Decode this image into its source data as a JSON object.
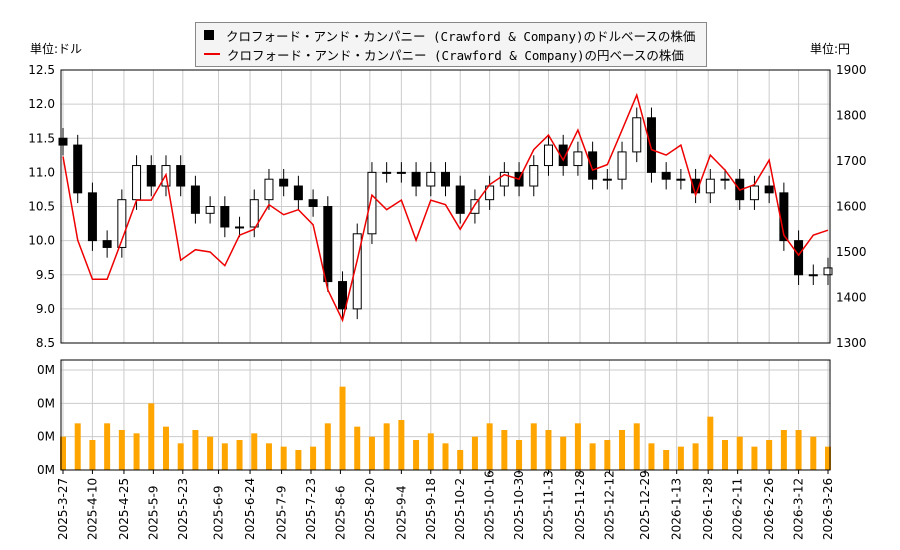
{
  "legend": {
    "usd_label": "クロフォード・アンド・カンパニー (Crawford & Company)のドルベースの株価",
    "jpy_label": "クロフォード・アンド・カンパニー (Crawford & Company)の円ベースの株価"
  },
  "units": {
    "left": "単位:ドル",
    "right": "単位:円"
  },
  "colors": {
    "usd": "#000000",
    "jpy": "#ee0000",
    "volume": "#ffa500",
    "grid": "#cccccc"
  },
  "chart_data": {
    "type": "candlestick+line+bar",
    "price_axis_left": {
      "range": [
        8.5,
        12.5
      ],
      "ticks": [
        "8.5",
        "9.0",
        "9.5",
        "10.0",
        "10.5",
        "11.0",
        "11.5",
        "12.0",
        "12.5"
      ]
    },
    "price_axis_right": {
      "range": [
        1300,
        1900
      ],
      "ticks": [
        "1300",
        "1400",
        "1500",
        "1600",
        "1700",
        "1800",
        "1900"
      ]
    },
    "volume_axis": {
      "range": [
        0,
        0.33
      ],
      "ticks": [
        0,
        0.1,
        0.2,
        0.3
      ],
      "tick_labels": [
        "0M",
        "0M",
        "0M",
        "0M"
      ]
    },
    "grid": true,
    "legend_position": "top-center",
    "x_ticks": [
      "2025-3-27",
      "2025-4-10",
      "2025-4-25",
      "2025-5-9",
      "2025-5-23",
      "2025-6-9",
      "2025-6-24",
      "2025-7-9",
      "2025-7-23",
      "2025-8-6",
      "2025-8-20",
      "2025-9-4",
      "2025-9-18",
      "2025-10-2",
      "2025-10-16",
      "2025-10-30",
      "2025-11-13",
      "2025-11-28",
      "2025-12-12",
      "2025-12-29",
      "2026-1-13",
      "2026-1-28",
      "2026-2-11",
      "2026-2-26",
      "2026-3-12",
      "2026-3-26"
    ],
    "dates": [
      "2025-03-27",
      "2025-04-03",
      "2025-04-10",
      "2025-04-17",
      "2025-04-24",
      "2025-05-01",
      "2025-05-08",
      "2025-05-15",
      "2025-05-22",
      "2025-05-29",
      "2025-06-05",
      "2025-06-12",
      "2025-06-19",
      "2025-06-26",
      "2025-07-03",
      "2025-07-10",
      "2025-07-17",
      "2025-07-24",
      "2025-07-31",
      "2025-08-07",
      "2025-08-14",
      "2025-08-21",
      "2025-08-28",
      "2025-09-04",
      "2025-09-11",
      "2025-09-18",
      "2025-09-25",
      "2025-10-02",
      "2025-10-09",
      "2025-10-16",
      "2025-10-23",
      "2025-10-30",
      "2025-11-06",
      "2025-11-13",
      "2025-11-20",
      "2025-11-27",
      "2025-12-04",
      "2025-12-11",
      "2025-12-18",
      "2025-12-25",
      "2026-01-01",
      "2026-01-08",
      "2026-01-15",
      "2026-01-22",
      "2026-01-29",
      "2026-02-05",
      "2026-02-12",
      "2026-02-19",
      "2026-02-26",
      "2026-03-05",
      "2026-03-12",
      "2026-03-19",
      "2026-03-26"
    ],
    "usd_close": [
      11.4,
      10.7,
      10.0,
      9.9,
      10.6,
      11.1,
      10.8,
      11.1,
      10.8,
      10.4,
      10.5,
      10.2,
      10.2,
      10.6,
      10.9,
      10.8,
      10.6,
      10.5,
      9.4,
      9.0,
      10.1,
      11.0,
      11.0,
      11.0,
      10.8,
      11.0,
      10.8,
      10.4,
      10.6,
      10.8,
      11.0,
      10.8,
      11.1,
      11.4,
      11.1,
      11.3,
      10.9,
      10.9,
      11.3,
      11.8,
      11.0,
      10.9,
      10.9,
      10.7,
      10.9,
      10.9,
      10.6,
      10.8,
      10.7,
      10.0,
      9.5,
      9.5,
      9.6
    ],
    "jpy_close": [
      1710,
      1526,
      1440,
      1440,
      1526,
      1614,
      1614,
      1670,
      1482,
      1505,
      1500,
      1470,
      1537,
      1550,
      1604,
      1582,
      1593,
      1560,
      1417,
      1350,
      1482,
      1625,
      1593,
      1614,
      1526,
      1614,
      1604,
      1550,
      1604,
      1648,
      1670,
      1660,
      1725,
      1757,
      1702,
      1768,
      1680,
      1692,
      1768,
      1845,
      1725,
      1713,
      1735,
      1625,
      1713,
      1680,
      1636,
      1648,
      1702,
      1537,
      1493,
      1537,
      1548
    ],
    "volume_m": [
      0.1,
      0.14,
      0.09,
      0.14,
      0.12,
      0.11,
      0.2,
      0.13,
      0.08,
      0.12,
      0.1,
      0.08,
      0.09,
      0.11,
      0.08,
      0.07,
      0.06,
      0.07,
      0.14,
      0.25,
      0.13,
      0.1,
      0.14,
      0.15,
      0.09,
      0.11,
      0.08,
      0.06,
      0.1,
      0.14,
      0.12,
      0.09,
      0.14,
      0.12,
      0.1,
      0.14,
      0.08,
      0.09,
      0.12,
      0.14,
      0.08,
      0.06,
      0.07,
      0.08,
      0.16,
      0.09,
      0.1,
      0.07,
      0.09,
      0.12,
      0.12,
      0.1,
      0.07
    ]
  }
}
